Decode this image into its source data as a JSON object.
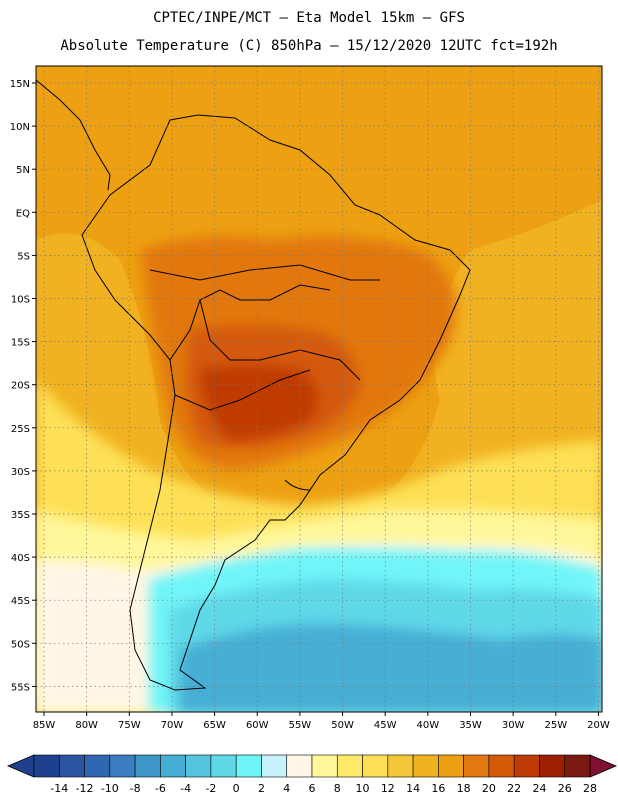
{
  "title": {
    "line1": "CPTEC/INPE/MCT –  Eta Model 15km – GFS",
    "line2": "Absolute Temperature (C) 850hPa – 15/12/2020 12UTC fct=192h"
  },
  "axes": {
    "lat_labels": [
      "15N",
      "10N",
      "5N",
      "EQ",
      "5S",
      "10S",
      "15S",
      "20S",
      "25S",
      "30S",
      "35S",
      "40S",
      "45S",
      "50S",
      "55S"
    ],
    "lon_labels": [
      "85W",
      "80W",
      "75W",
      "70W",
      "65W",
      "60W",
      "55W",
      "50W",
      "45W",
      "40W",
      "35W",
      "30W",
      "25W",
      "20W"
    ]
  },
  "colorbar": {
    "labels": [
      "-14",
      "-12",
      "-10",
      "-8",
      "-6",
      "-4",
      "-2",
      "0",
      "2",
      "4",
      "6",
      "8",
      "10",
      "12",
      "14",
      "16",
      "18",
      "20",
      "22",
      "24",
      "26",
      "28"
    ],
    "colors": [
      "#1f3f8f",
      "#2b55a3",
      "#3166b3",
      "#3b7ec0",
      "#3f96c8",
      "#46aed4",
      "#54c4df",
      "#5fd8e8",
      "#6ff5f8",
      "#c7f3fa",
      "#fff6e6",
      "#fff79a",
      "#ffe96a",
      "#fde055",
      "#f5c63a",
      "#f1b221",
      "#eda012",
      "#e27810",
      "#d45a08",
      "#bf3b06",
      "#9c2103",
      "#7a1a10",
      "#801030"
    ]
  },
  "map_colors": {
    "ocean_warm": "#f1b221",
    "north_warm": "#eda012",
    "land_warm": "#e27810",
    "land_hot": "#d45a08",
    "land_hotter": "#bf3b06",
    "subtropic": "#fde055",
    "midlat": "#fff79a",
    "cool": "#fff6e6",
    "cold_light": "#6ff5f8",
    "cold_mid": "#5fd8e8",
    "cold_deep": "#46aed4"
  }
}
